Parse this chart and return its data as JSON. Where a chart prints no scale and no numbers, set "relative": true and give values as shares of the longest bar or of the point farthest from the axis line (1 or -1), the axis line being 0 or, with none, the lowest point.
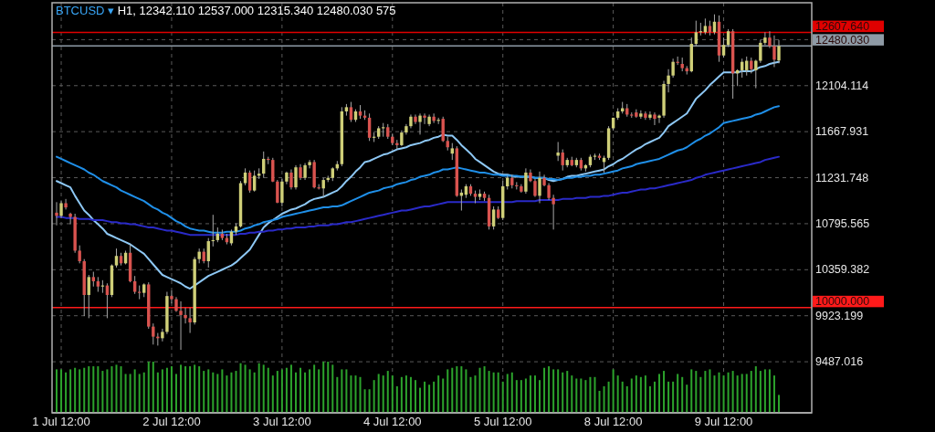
{
  "chart_data": [
    {
      "type": "candlestick",
      "title": "BTCUSD ▾ H1, 12342.110 12537.000 12315.340 12480.030 575",
      "grid": true,
      "categories": [
        null,
        "1 Jul 12:00",
        null,
        null,
        null,
        null,
        null,
        null,
        null,
        null,
        null,
        null,
        null,
        null,
        null,
        null,
        null,
        null,
        null,
        null,
        null,
        null,
        null,
        null,
        null,
        "2 Jul 12:00",
        null,
        null,
        null,
        null,
        null,
        null,
        null,
        null,
        null,
        null,
        null,
        null,
        null,
        null,
        null,
        null,
        null,
        null,
        null,
        null,
        null,
        null,
        null,
        "3 Jul 12:00",
        null,
        null,
        null,
        null,
        null,
        null,
        null,
        null,
        null,
        null,
        null,
        null,
        null,
        null,
        null,
        null,
        null,
        null,
        null,
        null,
        null,
        null,
        null,
        "4 Jul 12:00",
        null,
        null,
        null,
        null,
        null,
        null,
        null,
        null,
        null,
        null,
        null,
        null,
        null,
        null,
        null,
        null,
        null,
        null,
        null,
        null,
        null,
        null,
        null,
        "5 Jul 12:00",
        null,
        null,
        null,
        null,
        null,
        null,
        null,
        null,
        null,
        null,
        null,
        null,
        null,
        null,
        null,
        null,
        null,
        null,
        null,
        null,
        null,
        null,
        null,
        "8 Jul 12:00",
        null,
        null,
        null,
        null,
        null,
        null,
        null,
        null,
        null,
        null,
        null,
        null,
        null,
        null,
        null,
        null,
        null,
        null,
        null,
        null,
        null,
        null,
        null,
        "9 Jul 12:00",
        null,
        null,
        null,
        null,
        null,
        null,
        null,
        null,
        null,
        null,
        null,
        null
      ],
      "ohlc": [
        [
          10900,
          11000,
          10780,
          10870
        ],
        [
          10870,
          11010,
          10850,
          10990
        ],
        [
          10990,
          11030,
          10930,
          10950
        ],
        [
          10890,
          10900,
          10790,
          10860
        ],
        [
          10860,
          10890,
          10520,
          10540
        ],
        [
          10540,
          10590,
          10420,
          10440
        ],
        [
          10440,
          10460,
          9920,
          10120
        ],
        [
          10120,
          10310,
          9900,
          10290
        ],
        [
          10290,
          10340,
          10200,
          10250
        ],
        [
          10250,
          10290,
          10150,
          10200
        ],
        [
          10200,
          10260,
          10140,
          10210
        ],
        [
          10210,
          10230,
          9900,
          10120
        ],
        [
          10120,
          10410,
          10100,
          10400
        ],
        [
          10400,
          10560,
          10380,
          10490
        ],
        [
          10490,
          10520,
          10400,
          10420
        ],
        [
          10420,
          10540,
          10410,
          10520
        ],
        [
          10520,
          10600,
          10240,
          10250
        ],
        [
          10250,
          10300,
          10130,
          10150
        ],
        [
          10150,
          10210,
          10080,
          10140
        ],
        [
          10140,
          10230,
          10100,
          10220
        ],
        [
          10220,
          10240,
          9800,
          9820
        ],
        [
          9820,
          9850,
          9650,
          9725
        ],
        [
          9725,
          9760,
          9640,
          9710
        ],
        [
          9710,
          9800,
          9680,
          9770
        ],
        [
          9770,
          10150,
          9750,
          10110
        ],
        [
          10110,
          10160,
          10040,
          10080
        ],
        [
          10080,
          10100,
          9960,
          9970
        ],
        [
          9970,
          10060,
          9600,
          9930
        ],
        [
          9930,
          10000,
          9850,
          9900
        ],
        [
          9900,
          10000,
          9760,
          9860
        ],
        [
          9860,
          10480,
          9840,
          10460
        ],
        [
          10460,
          10560,
          10420,
          10530
        ],
        [
          10530,
          10560,
          10420,
          10440
        ],
        [
          10440,
          10660,
          10380,
          10630
        ],
        [
          10630,
          10880,
          10580,
          10640
        ],
        [
          10640,
          10760,
          10620,
          10700
        ],
        [
          10700,
          10740,
          10640,
          10660
        ],
        [
          10660,
          10700,
          10600,
          10620
        ],
        [
          10610,
          10740,
          10590,
          10720
        ],
        [
          10720,
          10800,
          10690,
          10770
        ],
        [
          10770,
          11200,
          10760,
          11180
        ],
        [
          11180,
          11320,
          11160,
          11280
        ],
        [
          11280,
          11300,
          11090,
          11110
        ],
        [
          11110,
          11300,
          11100,
          11250
        ],
        [
          11250,
          11320,
          11220,
          11270
        ],
        [
          11270,
          11480,
          11230,
          11410
        ],
        [
          11410,
          11430,
          11360,
          11400
        ],
        [
          11400,
          11420,
          11190,
          11195
        ],
        [
          11195,
          11210,
          10990,
          10995
        ],
        [
          10995,
          11220,
          10960,
          11195
        ],
        [
          11195,
          11290,
          11170,
          11280
        ],
        [
          11280,
          11310,
          11120,
          11140
        ],
        [
          11140,
          11350,
          11120,
          11330
        ],
        [
          11330,
          11360,
          11210,
          11230
        ],
        [
          11230,
          11370,
          11210,
          11350
        ],
        [
          11350,
          11400,
          11320,
          11380
        ],
        [
          11380,
          11400,
          11130,
          11140
        ],
        [
          11140,
          11170,
          11120,
          11130
        ],
        [
          11130,
          11230,
          11050,
          11210
        ],
        [
          11210,
          11250,
          11190,
          11230
        ],
        [
          11230,
          11330,
          11200,
          11320
        ],
        [
          11320,
          11390,
          11300,
          11360
        ],
        [
          11360,
          11900,
          11340,
          11860
        ],
        [
          11860,
          11930,
          11820,
          11900
        ],
        [
          11900,
          11950,
          11760,
          11780
        ],
        [
          11780,
          11880,
          11760,
          11860
        ],
        [
          11860,
          11920,
          11790,
          11820
        ],
        [
          11820,
          11870,
          11780,
          11800
        ],
        [
          11800,
          11840,
          11580,
          11610
        ],
        [
          11610,
          11660,
          11570,
          11620
        ],
        [
          11620,
          11720,
          11600,
          11700
        ],
        [
          11700,
          11750,
          11620,
          11710
        ],
        [
          11710,
          11740,
          11600,
          11620
        ],
        [
          11620,
          11650,
          11540,
          11560
        ],
        [
          11560,
          11590,
          11500,
          11540
        ],
        [
          11540,
          11680,
          11530,
          11660
        ],
        [
          11660,
          11740,
          11640,
          11720
        ],
        [
          11720,
          11830,
          11700,
          11810
        ],
        [
          11810,
          11830,
          11740,
          11760
        ],
        [
          11760,
          11840,
          11640,
          11820
        ],
        [
          11820,
          11840,
          11740,
          11800
        ],
        [
          11740,
          11830,
          11720,
          11810
        ],
        [
          11810,
          11840,
          11750,
          11770
        ],
        [
          11770,
          11800,
          11740,
          11780
        ],
        [
          11790,
          11810,
          11570,
          11580
        ],
        [
          11580,
          11620,
          11490,
          11520
        ],
        [
          11460,
          11560,
          11400,
          11510
        ],
        [
          11510,
          11530,
          11050,
          11060
        ],
        [
          11060,
          11120,
          10920,
          11090
        ],
        [
          11070,
          11170,
          11040,
          11150
        ],
        [
          11150,
          11170,
          11060,
          11080
        ],
        [
          11080,
          11110,
          10990,
          11050
        ],
        [
          11050,
          11120,
          11020,
          11080
        ],
        [
          11080,
          11100,
          11010,
          11040
        ],
        [
          11040,
          11070,
          10740,
          10770
        ],
        [
          10770,
          10960,
          10740,
          10930
        ],
        [
          10930,
          10960,
          10840,
          10850
        ],
        [
          10850,
          11200,
          10830,
          11150
        ],
        [
          11150,
          11250,
          11120,
          11230
        ],
        [
          11230,
          11260,
          11130,
          11160
        ],
        [
          11160,
          11190,
          11120,
          11150
        ],
        [
          11150,
          11170,
          11090,
          11100
        ],
        [
          11100,
          11320,
          11080,
          11280
        ],
        [
          11280,
          11310,
          11190,
          11200
        ],
        [
          11200,
          11220,
          11050,
          11060
        ],
        [
          11060,
          11290,
          10990,
          11230
        ],
        [
          11230,
          11260,
          11150,
          11160
        ],
        [
          11160,
          11180,
          11020,
          11040
        ],
        [
          11040,
          11070,
          10740,
          10980
        ],
        [
          11440,
          11570,
          11390,
          11470
        ],
        [
          11470,
          11500,
          11300,
          11350
        ],
        [
          11350,
          11420,
          11330,
          11400
        ],
        [
          11400,
          11430,
          11340,
          11350
        ],
        [
          11350,
          11420,
          11330,
          11400
        ],
        [
          11400,
          11420,
          11300,
          11320
        ],
        [
          11320,
          11360,
          11290,
          11350
        ],
        [
          11350,
          11450,
          11330,
          11430
        ],
        [
          11430,
          11460,
          11400,
          11440
        ],
        [
          11440,
          11460,
          11400,
          11420
        ],
        [
          11380,
          11440,
          11280,
          11420
        ],
        [
          11420,
          11720,
          11400,
          11700
        ],
        [
          11700,
          11800,
          11680,
          11800
        ],
        [
          11800,
          11890,
          11780,
          11860
        ],
        [
          11860,
          11950,
          11840,
          11890
        ],
        [
          11890,
          11930,
          11810,
          11830
        ],
        [
          11830,
          11850,
          11800,
          11820
        ],
        [
          11850,
          11880,
          11800,
          11810
        ],
        [
          11810,
          11870,
          11790,
          11840
        ],
        [
          11840,
          11860,
          11780,
          11800
        ],
        [
          11800,
          11860,
          11780,
          11830
        ],
        [
          11830,
          11850,
          11730,
          11790
        ],
        [
          11800,
          11830,
          11750,
          11820
        ],
        [
          11820,
          12150,
          11800,
          12120
        ],
        [
          12120,
          12260,
          12040,
          12200
        ],
        [
          12200,
          12360,
          12180,
          12330
        ],
        [
          12330,
          12380,
          12300,
          12320
        ],
        [
          12310,
          12370,
          12240,
          12270
        ],
        [
          12270,
          12290,
          12210,
          12240
        ],
        [
          12240,
          12560,
          12230,
          12500
        ],
        [
          12500,
          12720,
          12480,
          12610
        ],
        [
          12610,
          12700,
          12580,
          12620
        ],
        [
          12610,
          12740,
          12590,
          12670
        ],
        [
          12670,
          12720,
          12580,
          12610
        ],
        [
          12610,
          12780,
          12590,
          12710
        ],
        [
          12710,
          12770,
          12330,
          12390
        ],
        [
          12390,
          12560,
          12370,
          12490
        ],
        [
          12490,
          12640,
          12470,
          12620
        ],
        [
          12620,
          12640,
          11980,
          12220
        ],
        [
          12220,
          12260,
          12100,
          12250
        ],
        [
          12250,
          12360,
          12180,
          12330
        ],
        [
          12250,
          12380,
          12200,
          12340
        ],
        [
          12340,
          12370,
          12220,
          12260
        ],
        [
          12250,
          12350,
          12080,
          12340
        ],
        [
          12340,
          12540,
          12320,
          12510
        ],
        [
          12510,
          12610,
          12490,
          12560
        ],
        [
          12560,
          12620,
          12460,
          12480
        ],
        [
          12480,
          12580,
          12280,
          12350
        ],
        [
          12342.11,
          12537,
          12315.34,
          12480.03
        ]
      ],
      "ylim": [
        9003,
        12890
      ],
      "yticks": [
        9487.016,
        9923.199,
        10359.382,
        10795.565,
        11231.748,
        11667.931,
        12104.114,
        {
          "value": 12540.297,
          "label": null
        }
      ],
      "series": [
        {
          "type": "line",
          "color": "#8ec8f5",
          "values": [
            11200,
            11180,
            11160,
            11140,
            11060,
            10990,
            10920,
            10880,
            10830,
            10790,
            10750,
            10700,
            10680,
            10660,
            10640,
            10620,
            10600,
            10570,
            10540,
            10510,
            10460,
            10410,
            10360,
            10310,
            10290,
            10270,
            10250,
            10230,
            10200,
            10180,
            10210,
            10240,
            10270,
            10300,
            10320,
            10340,
            10360,
            10380,
            10400,
            10430,
            10470,
            10510,
            10550,
            10620,
            10690,
            10760,
            10800,
            10830,
            10860,
            10890,
            10910,
            10930,
            10940,
            10960,
            10980,
            11010,
            11030,
            11040,
            11050,
            11070,
            11090,
            11110,
            11150,
            11200,
            11240,
            11290,
            11330,
            11380,
            11390,
            11410,
            11430,
            11450,
            11460,
            11480,
            11500,
            11510,
            11520,
            11540,
            11550,
            11560,
            11580,
            11590,
            11610,
            11620,
            11640,
            11630,
            11630,
            11590,
            11540,
            11500,
            11460,
            11410,
            11380,
            11350,
            11320,
            11290,
            11270,
            11260,
            11260,
            11250,
            11240,
            11240,
            null,
            11240,
            11230,
            11230,
            11230,
            11210,
            11200,
            11210,
            11220,
            11240,
            11250,
            11250,
            11260,
            11270,
            11280,
            11290,
            11300,
            11310,
            11340,
            11360,
            11390,
            11410,
            11440,
            11470,
            11500,
            11520,
            11550,
            11570,
            11590,
            11610,
            11660,
            11720,
            11750,
            11780,
            11810,
            11840,
            11910,
            11980,
            12020,
            12060,
            12110,
            12150,
            12190,
            12230,
            12230,
            12230,
            12230,
            12240,
            12240,
            12240,
            12260,
            12280,
            12290,
            12310,
            12320,
            12330
          ]
        },
        {
          "type": "line",
          "color": "#1f8fe8",
          "values": [
            11430,
            11410,
            11390,
            11370,
            11350,
            11330,
            11310,
            11280,
            11260,
            11230,
            11200,
            11180,
            11160,
            11140,
            11110,
            11090,
            11070,
            11050,
            11030,
            11010,
            10980,
            10950,
            10930,
            10900,
            10880,
            10850,
            10820,
            10800,
            10770,
            10750,
            10740,
            10730,
            10730,
            10720,
            10710,
            10710,
            10710,
            10720,
            10720,
            10720,
            10730,
            10750,
            10760,
            10780,
            10790,
            10810,
            10820,
            10830,
            10840,
            10860,
            10870,
            10880,
            10890,
            10900,
            10910,
            10920,
            10930,
            10940,
            10950,
            10950,
            10960,
            10960,
            10970,
            10990,
            11010,
            11030,
            11050,
            11070,
            11090,
            11100,
            11110,
            11130,
            11140,
            11150,
            11170,
            11180,
            11190,
            11210,
            11220,
            11240,
            11250,
            11260,
            11280,
            11290,
            11310,
            11310,
            11320,
            11330,
            11320,
            11310,
            11300,
            11290,
            11280,
            11280,
            11270,
            11260,
            11260,
            11250,
            11250,
            11250,
            11250,
            11240,
            11240,
            11240,
            11230,
            11230,
            11230,
            11220,
            11220,
            11210,
            11220,
            11230,
            11230,
            11240,
            11240,
            11250,
            11250,
            11260,
            11260,
            11270,
            11280,
            11290,
            11300,
            11320,
            11330,
            11340,
            11360,
            11370,
            11380,
            11390,
            11400,
            11410,
            11430,
            11450,
            11470,
            11490,
            11500,
            11520,
            11550,
            11580,
            11600,
            11630,
            11650,
            11680,
            11710,
            11750,
            11760,
            11770,
            11780,
            11790,
            11800,
            11810,
            11830,
            11840,
            11860,
            11880,
            11900,
            11910
          ]
        },
        {
          "type": "line",
          "color": "#2a2ac8",
          "values": [
            10860,
            10860,
            10850,
            10850,
            10850,
            10840,
            10840,
            10840,
            10830,
            10830,
            10830,
            10820,
            10810,
            10810,
            10800,
            10800,
            10790,
            10790,
            10780,
            10770,
            10760,
            10760,
            10750,
            10740,
            10730,
            10730,
            10720,
            10710,
            10700,
            10690,
            10690,
            10690,
            10690,
            10690,
            10690,
            10690,
            10690,
            10690,
            10690,
            10690,
            10700,
            10700,
            10710,
            10710,
            10720,
            10720,
            10730,
            10730,
            10740,
            10740,
            10750,
            10750,
            10760,
            10760,
            10760,
            10770,
            10770,
            10780,
            10780,
            10780,
            10790,
            10790,
            10800,
            10810,
            10810,
            10820,
            10830,
            10840,
            10850,
            10860,
            10870,
            10880,
            10890,
            10900,
            10910,
            10920,
            10920,
            10930,
            10940,
            10950,
            10960,
            10960,
            10970,
            10980,
            10990,
            11000,
            11000,
            11000,
            11000,
            11000,
            11000,
            11000,
            11000,
            11000,
            11000,
            11000,
            11000,
            11000,
            11000,
            11000,
            11010,
            11010,
            11010,
            11010,
            11010,
            11020,
            11020,
            11020,
            11020,
            11020,
            11030,
            11030,
            11030,
            11040,
            11040,
            11040,
            11050,
            11050,
            11050,
            11060,
            11060,
            11070,
            11080,
            11090,
            11090,
            11100,
            11110,
            11120,
            11120,
            11130,
            11130,
            11140,
            11150,
            11160,
            11170,
            11180,
            11190,
            11200,
            11210,
            11230,
            11240,
            11260,
            11270,
            11280,
            11290,
            11300,
            11310,
            11320,
            11330,
            11340,
            11350,
            11360,
            11370,
            11380,
            11400,
            11410,
            11420,
            11430
          ]
        }
      ],
      "ref_lines": [
        {
          "axis": "y",
          "value": 12607.64,
          "label": "12607.640",
          "color": "#e00000"
        },
        {
          "axis": "y",
          "value": 12480.03,
          "label": "12480.030",
          "color": "#8e9aa5"
        },
        {
          "axis": "y",
          "value": 10000,
          "label": "10000.000",
          "color": "#ff1a1a"
        }
      ]
    },
    {
      "type": "bar",
      "relative": true,
      "color": "#2ca32c",
      "categories": [
        null,
        null,
        null,
        null,
        null,
        null,
        null,
        null,
        null,
        null,
        null,
        null,
        null,
        null,
        null,
        null,
        null,
        null,
        null,
        null,
        null,
        null,
        null,
        null,
        null,
        null,
        null,
        null,
        null,
        null,
        null,
        null,
        null,
        null,
        null,
        null,
        null,
        null,
        null,
        null,
        null,
        null,
        null,
        null,
        null,
        null,
        null,
        null,
        null,
        null,
        null,
        null,
        null,
        null,
        null,
        null,
        null,
        null,
        null,
        null,
        null,
        null,
        null,
        null,
        null,
        null,
        null,
        null,
        null,
        null,
        null,
        null,
        null,
        null,
        null,
        null,
        null,
        null,
        null,
        null,
        null,
        null,
        null,
        null,
        null,
        null,
        null,
        null,
        null,
        null,
        null,
        null,
        null,
        null,
        null,
        null,
        null,
        null,
        null,
        null,
        null,
        null,
        null,
        null,
        null,
        null,
        null,
        null,
        null,
        null,
        null,
        null,
        null,
        null,
        null,
        null,
        null,
        null,
        null,
        null,
        null,
        null,
        null,
        null,
        null,
        null,
        null,
        null,
        null,
        null,
        null,
        null,
        null,
        null,
        null,
        null,
        null,
        null,
        null,
        null,
        null,
        null,
        null,
        null,
        null,
        null,
        null,
        null,
        null,
        null,
        null,
        null,
        null,
        null,
        null,
        null,
        null,
        null
      ],
      "values": [
        0.85,
        0.85,
        0.79,
        0.85,
        0.88,
        0.85,
        0.88,
        0.91,
        0.91,
        0.91,
        0.82,
        0.85,
        0.91,
        0.94,
        0.91,
        0.76,
        0.76,
        0.85,
        0.76,
        0.79,
        1,
        1,
        0.79,
        0.85,
        0.88,
        0.91,
        0.76,
        0.94,
        0.91,
        0.91,
        0.94,
        0.91,
        0.82,
        0.85,
        0.79,
        0.76,
        0.85,
        0.73,
        0.79,
        0.82,
        0.97,
        0.94,
        0.85,
        0.79,
        0.97,
        0.94,
        0.88,
        0.73,
        0.82,
        0.85,
        0.88,
        0.94,
        0.79,
        0.88,
        0.79,
        0.85,
        0.94,
        0.85,
        1,
        1,
        0.94,
        0.7,
        0.85,
        0.85,
        0.73,
        0.73,
        0.7,
        0.46,
        0.46,
        0.64,
        0.76,
        0.73,
        0.82,
        0.73,
        0.52,
        0.7,
        0.73,
        0.7,
        0.64,
        0.49,
        0.61,
        0.55,
        0.61,
        0.73,
        0.67,
        0.85,
        0.88,
        0.91,
        0.91,
        0.85,
        0.7,
        0.73,
        0.88,
        0.91,
        0.82,
        0.79,
        0.79,
        0.61,
        0.76,
        0.79,
        0.64,
        0.64,
        0.67,
        0.73,
        0.73,
        0.64,
        0.88,
        0.91,
        0.85,
        0.85,
        0.79,
        0.82,
        0.73,
        0.67,
        0.67,
        0.64,
        0.7,
        0.7,
        0.43,
        0.52,
        0.61,
        0.85,
        0.73,
        0.61,
        0.52,
        0.67,
        0.73,
        0.7,
        0.73,
        0.52,
        0.61,
        0.76,
        0.82,
        0.61,
        0.61,
        0.76,
        0.7,
        0.55,
        0.85,
        0.82,
        0.7,
        0.82,
        0.85,
        0.73,
        0.79,
        0.73,
        0.79,
        0.82,
        0.73,
        0.76,
        0.76,
        0.82,
        0.91,
        0.82,
        0.85,
        0.85,
        0.73,
        0.35
      ]
    }
  ]
}
